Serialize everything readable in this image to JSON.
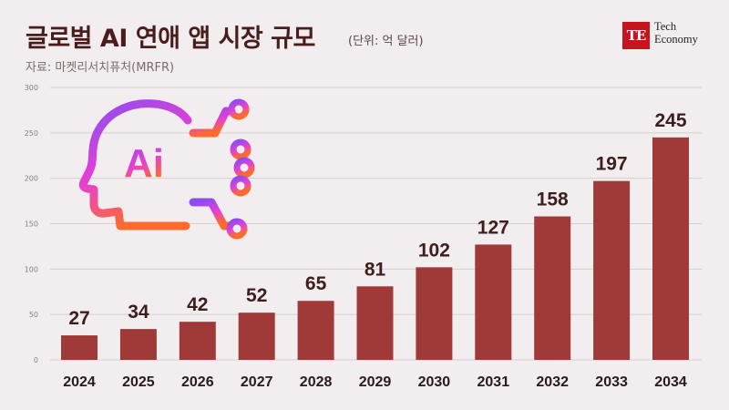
{
  "header": {
    "title": "글로벌 AI 연애 앱 시장 규모",
    "unit": "(단위: 억 달러)",
    "source": "자료: 마켓리서치퓨처(MRFR)"
  },
  "logo": {
    "mark": "TE",
    "line1": "Tech",
    "line2": "Economy"
  },
  "illustration": {
    "text": "Ai",
    "icon": "ai-head-circuit-icon"
  },
  "colors": {
    "bar": "#a03a38",
    "label": "#3e1d1d",
    "grid": "#d7cfd0",
    "background": "#f2eeef"
  },
  "chart_data": {
    "type": "bar",
    "categories": [
      "2024",
      "2025",
      "2026",
      "2027",
      "2028",
      "2029",
      "2030",
      "2031",
      "2032",
      "2033",
      "2034"
    ],
    "values": [
      27,
      34,
      42,
      52,
      65,
      81,
      102,
      127,
      158,
      197,
      245
    ],
    "title": "글로벌 AI 연애 앱 시장 규모",
    "xlabel": "",
    "ylabel": "",
    "ylim": [
      0,
      300
    ],
    "yticks": [
      "0",
      "50",
      "100",
      "150",
      "200",
      "250",
      "300"
    ],
    "grid": true,
    "legend": "none"
  }
}
